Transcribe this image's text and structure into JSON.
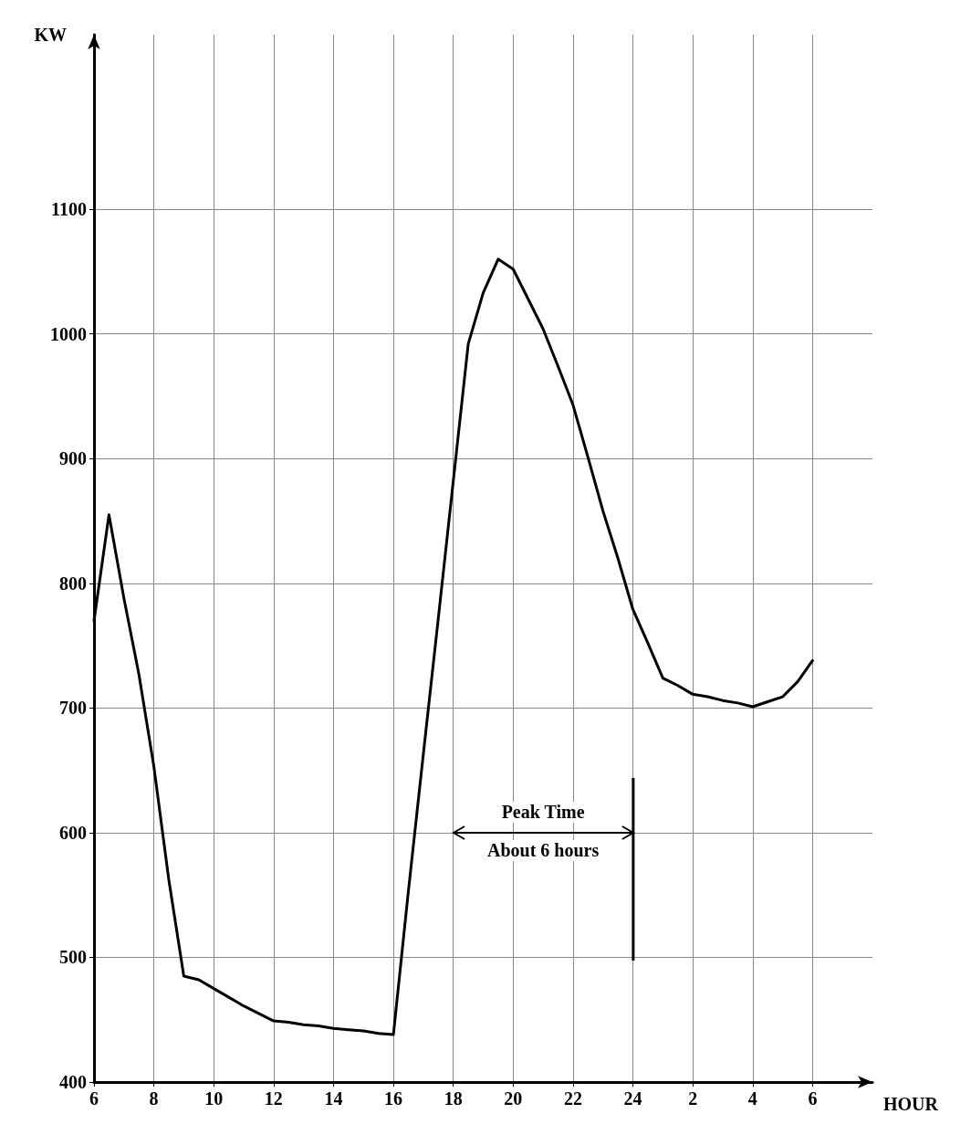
{
  "chart_data": {
    "type": "line",
    "xlabel": "HOUR",
    "ylabel": "KW",
    "color": "#000000",
    "categories": [
      "6",
      null,
      null,
      null,
      "8",
      null,
      null,
      null,
      "10",
      null,
      null,
      null,
      "12",
      null,
      null,
      null,
      "14",
      null,
      null,
      null,
      "16",
      null,
      null,
      null,
      "18",
      null,
      null,
      null,
      "20",
      null,
      null,
      null,
      "22",
      null,
      null,
      null,
      "24",
      null,
      null,
      null,
      "2",
      null,
      null,
      null,
      "4",
      null,
      null,
      null,
      "6",
      null,
      null,
      null,
      null
    ],
    "values": [
      770,
      855,
      788,
      727,
      653,
      562,
      485,
      482,
      475,
      468,
      461,
      455,
      449,
      448,
      446,
      445,
      443,
      442,
      441,
      439,
      438,
      553,
      663,
      772,
      882,
      992,
      1033,
      1060,
      1052,
      1028,
      1004,
      974,
      943,
      901,
      858,
      820,
      779,
      752,
      724,
      718,
      711,
      709,
      706,
      704,
      701,
      705,
      709,
      721,
      738,
      null,
      null,
      null,
      null
    ],
    "ylim": [
      400,
      1240
    ],
    "yticks": [
      400,
      500,
      600,
      700,
      800,
      900,
      1000,
      1100
    ],
    "grid": true,
    "marker": "none",
    "line_style": "solid",
    "annotations": [
      "Peak Time",
      "About 6 hours"
    ]
  }
}
